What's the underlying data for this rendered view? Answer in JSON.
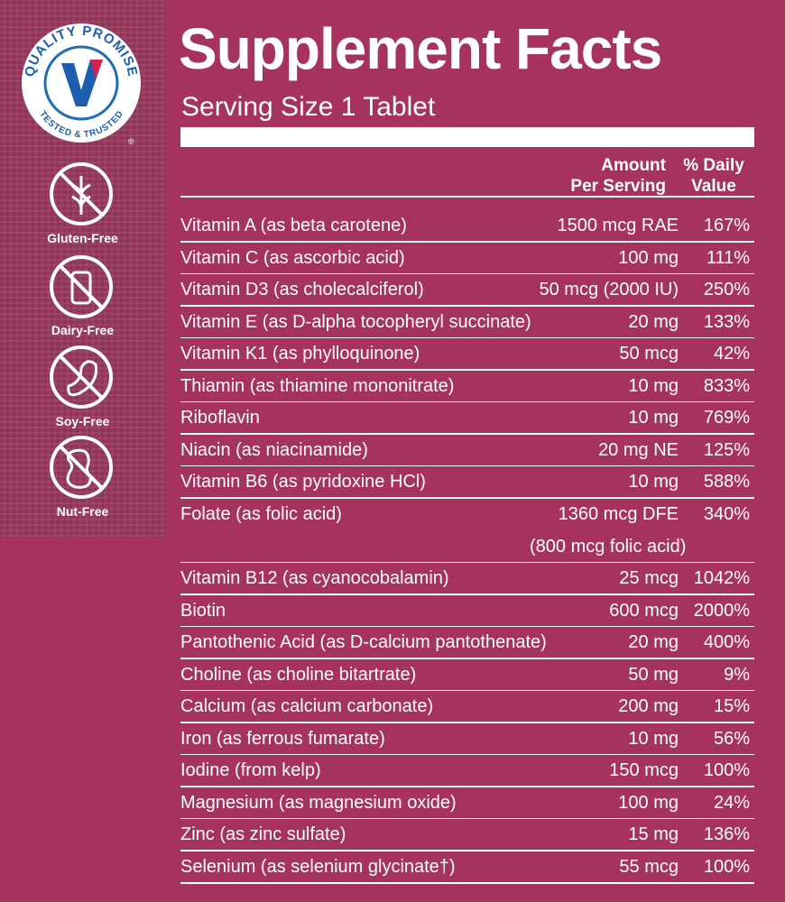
{
  "badge": {
    "top_text": "QUALITY PROMISE",
    "bottom_text": "TESTED & TRUSTED",
    "mark": "®"
  },
  "features": [
    "Gluten-Free",
    "Dairy-Free",
    "Soy-Free",
    "Nut-Free"
  ],
  "header": {
    "title": "Supplement Facts",
    "serving": "Serving Size 1 Tablet"
  },
  "table": {
    "columns": {
      "amount": [
        "Amount",
        "Per Serving"
      ],
      "dv": [
        "% Daily",
        "Value"
      ]
    },
    "rows": [
      {
        "name": "Vitamin A (as beta carotene)",
        "amount": "1500 mcg RAE",
        "dv": "167%"
      },
      {
        "name": "Vitamin C (as ascorbic acid)",
        "amount": "100 mg",
        "dv": "111%"
      },
      {
        "name": "Vitamin D3 (as cholecalciferol)",
        "amount": "50 mcg (2000 IU)",
        "dv": "250%"
      },
      {
        "name": "Vitamin E (as D-alpha tocopheryl succinate)",
        "amount": "20 mg",
        "dv": "133%"
      },
      {
        "name": "Vitamin K1 (as phylloquinone)",
        "amount": "50 mcg",
        "dv": "42%"
      },
      {
        "name": "Thiamin (as thiamine mononitrate)",
        "amount": "10 mg",
        "dv": "833%"
      },
      {
        "name": "Riboflavin",
        "amount": "10 mg",
        "dv": "769%"
      },
      {
        "name": "Niacin (as niacinamide)",
        "amount": "20 mg NE",
        "dv": "125%"
      },
      {
        "name": "Vitamin B6 (as pyridoxine HCl)",
        "amount": "10 mg",
        "dv": "588%"
      },
      {
        "name": "Folate (as folic acid)",
        "amount": "1360 mcg DFE",
        "dv": "340%",
        "note": "(800 mcg folic acid)"
      },
      {
        "name": "Vitamin B12 (as cyanocobalamin)",
        "amount": "25 mcg",
        "dv": "1042%"
      },
      {
        "name": "Biotin",
        "amount": "600 mcg",
        "dv": "2000%"
      },
      {
        "name": "Pantothenic Acid (as D-calcium pantothenate)",
        "amount": "20 mg",
        "dv": "400%"
      },
      {
        "name": "Choline (as choline bitartrate)",
        "amount": "50 mg",
        "dv": "9%"
      },
      {
        "name": "Calcium (as calcium carbonate)",
        "amount": "200 mg",
        "dv": "15%"
      },
      {
        "name": "Iron (as ferrous fumarate)",
        "amount": "10 mg",
        "dv": "56%"
      },
      {
        "name": "Iodine (from kelp)",
        "amount": "150 mcg",
        "dv": "100%"
      },
      {
        "name": "Magnesium (as magnesium oxide)",
        "amount": "100 mg",
        "dv": "24%"
      },
      {
        "name": "Zinc (as zinc sulfate)",
        "amount": "15 mg",
        "dv": "136%"
      },
      {
        "name": "Selenium (as selenium glycinate†)",
        "amount": "55 mcg",
        "dv": "100%"
      }
    ]
  }
}
